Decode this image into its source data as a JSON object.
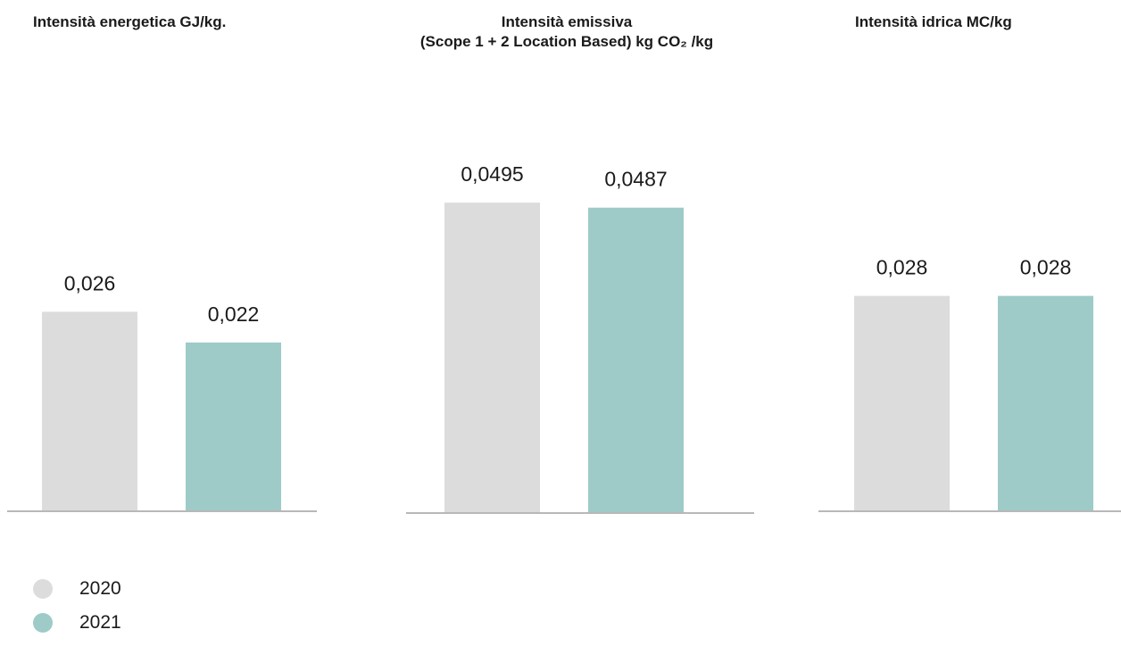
{
  "colors": {
    "y2020": "#dcdcdc",
    "y2021": "#9ecbc7",
    "axis": "#b8b8b8"
  },
  "legend": [
    {
      "label": "2020",
      "color": "#dcdcdc"
    },
    {
      "label": "2021",
      "color": "#9ecbc7"
    }
  ],
  "chart_data": [
    {
      "type": "bar",
      "title": "Intensità energetica GJ/kg.",
      "title_lines": [
        "Intensità energetica GJ/kg."
      ],
      "categories": [
        "2020",
        "2021"
      ],
      "values": [
        0.026,
        0.022
      ],
      "value_labels": [
        "0,026",
        "0,022"
      ],
      "ylim": [
        0,
        0.0407
      ]
    },
    {
      "type": "bar",
      "title": "Intensità emissiva (Scope 1 + 2 Location Based) kg CO₂ /kg",
      "title_lines": [
        "Intensità emissiva",
        "(Scope 1 + 2 Location Based) kg CO₂ /kg"
      ],
      "categories": [
        "2020",
        "2021"
      ],
      "values": [
        0.0495,
        0.0487
      ],
      "value_labels": [
        "0,0495",
        "0,0487"
      ],
      "ylim": [
        0,
        0.0498
      ]
    },
    {
      "type": "bar",
      "title": "Intensità idrica MC/kg",
      "title_lines": [
        "Intensità idrica MC/kg"
      ],
      "categories": [
        "2020",
        "2021"
      ],
      "values": [
        0.028,
        0.028
      ],
      "value_labels": [
        "0,028",
        "0,028"
      ],
      "ylim": [
        0,
        0.0406
      ]
    }
  ]
}
